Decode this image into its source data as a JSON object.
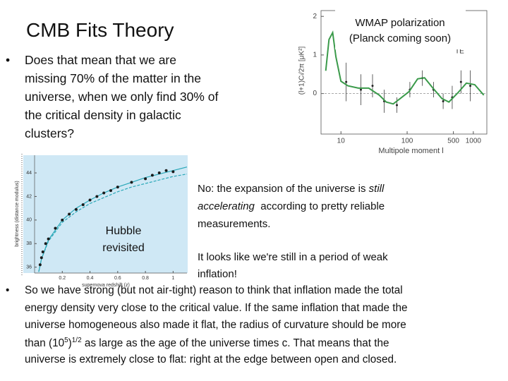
{
  "title": "CMB Fits Theory",
  "bullet1": {
    "marker": "•",
    "lines": [
      "Does that mean that we are",
      "missing 70% of the matter in the",
      "universe, when we only find 30% of",
      "the critical density in galactic",
      "clusters?"
    ]
  },
  "te_chart": {
    "type": "line",
    "caption": [
      "WMAP polarization",
      "(Planck coming soon)"
    ],
    "y_label": "(l+1)Cₗ/2π [μK²]",
    "x_label": "Multipole moment l",
    "xscale": "log",
    "xlim": [
      5,
      1600
    ],
    "ylim": [
      -1.05,
      2.15
    ],
    "xticks": [
      10,
      100,
      500,
      1000
    ],
    "yticks": [
      0,
      1,
      2
    ],
    "series": [
      {
        "name": "TE",
        "color": "#3a9a4a",
        "x": [
          5.9,
          6.6,
          7.5,
          8.4,
          10,
          12.7,
          18.3,
          26.3,
          37.9,
          48.3,
          61.6,
          78.6,
          107,
          144,
          183,
          245,
          335,
          427,
          585,
          785,
          1050,
          1440
        ],
        "values": [
          0.59,
          1.4,
          1.58,
          0.95,
          0.32,
          0.2,
          0.14,
          0.14,
          -0.04,
          -0.22,
          -0.27,
          -0.13,
          0.05,
          0.38,
          0.41,
          0.14,
          -0.13,
          -0.22,
          0.02,
          0.27,
          0.23,
          -0.04
        ]
      }
    ],
    "points": {
      "color": "#222222",
      "x": [
        12,
        20,
        30,
        45,
        70,
        110,
        170,
        250,
        350,
        480,
        650,
        900
      ],
      "values": [
        0.3,
        0.1,
        0.2,
        -0.2,
        -0.3,
        0.1,
        0.4,
        0.1,
        -0.2,
        -0.1,
        0.3,
        0.2
      ],
      "errors": [
        0.5,
        0.4,
        0.3,
        0.3,
        0.2,
        0.2,
        0.2,
        0.2,
        0.2,
        0.3,
        0.3,
        0.4
      ]
    }
  },
  "hubble_chart": {
    "type": "scatter",
    "annotation": [
      "Hubble",
      "revisited"
    ],
    "x_label": "supernova redshift (z)",
    "y_label": "brightness (distance modulus)",
    "background": "#cfe8f5",
    "xlim": [
      0,
      1.1
    ],
    "ylim": [
      35.5,
      45.5
    ],
    "xticks": [
      0.2,
      0.4,
      0.6,
      0.8,
      1
    ],
    "yticks": [
      36,
      38,
      40,
      42,
      44
    ],
    "points": {
      "color": "#1a1a1a",
      "x": [
        0.04,
        0.05,
        0.06,
        0.08,
        0.1,
        0.15,
        0.2,
        0.25,
        0.3,
        0.35,
        0.4,
        0.45,
        0.5,
        0.55,
        0.6,
        0.7,
        0.8,
        0.85,
        0.9,
        0.95,
        1.0
      ],
      "values": [
        36.2,
        36.8,
        37.3,
        38,
        38.4,
        39.3,
        40,
        40.5,
        40.9,
        41.3,
        41.7,
        42,
        42.3,
        42.5,
        42.8,
        43.2,
        43.5,
        43.8,
        44,
        44.2,
        44.1
      ]
    },
    "series": [
      {
        "color": "#2aa8b8",
        "dash": false,
        "x": [
          0.03,
          0.05,
          0.1,
          0.2,
          0.3,
          0.4,
          0.5,
          0.6,
          0.7,
          0.8,
          0.9,
          1.0,
          1.1
        ],
        "values": [
          35.6,
          36.7,
          38.3,
          40,
          41,
          41.7,
          42.3,
          42.8,
          43.2,
          43.6,
          43.9,
          44.2,
          44.5
        ]
      },
      {
        "color": "#2aa8b8",
        "dash": true,
        "x": [
          0.03,
          0.05,
          0.1,
          0.2,
          0.3,
          0.4,
          0.5,
          0.6,
          0.7,
          0.8,
          0.9,
          1.0,
          1.1
        ],
        "values": [
          35.6,
          36.7,
          38.2,
          39.8,
          40.7,
          41.4,
          41.9,
          42.4,
          42.8,
          43.1,
          43.4,
          43.7,
          43.9
        ]
      }
    ]
  },
  "note": {
    "line1": [
      "No: the expansion of the universe is ",
      "still"
    ],
    "line2": [
      "accelerating",
      "  according to pretty reliable"
    ],
    "line3": "measurements.",
    "line4": "It looks like we're still in a period of weak",
    "line5": "inflation!"
  },
  "bullet2": {
    "marker": "•",
    "line1": "So we have strong (but not air-tight) reason to think that inflation made the total",
    "line2": "energy density very close to the critical value. If the same inflation that made the",
    "line3": "universe homogeneous also made it flat, the radius of curvature should be more",
    "line4": [
      "than (10",
      "5",
      ")",
      "1/2",
      " as large as the age of the universe times c. That means that the"
    ],
    "line5": "universe is extremely close to flat: right at the edge between open and closed."
  }
}
